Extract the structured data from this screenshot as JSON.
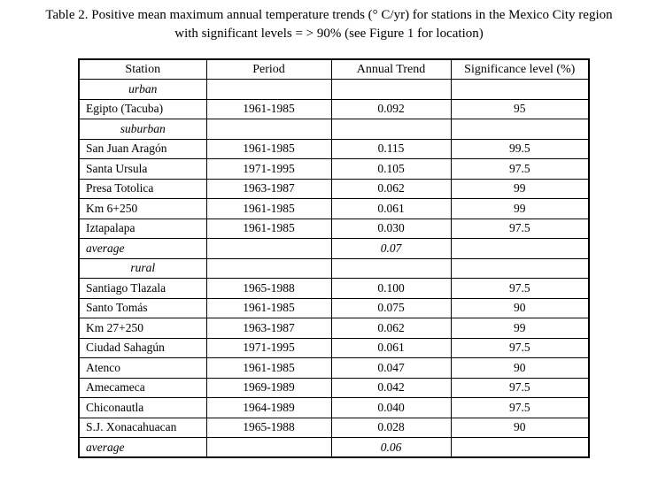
{
  "caption": {
    "line1": "Table 2. Positive mean maximum annual temperature trends (° C/yr) for stations in the Mexico City region",
    "line2": "with significant levels = > 90% (see Figure 1 for location)"
  },
  "table": {
    "columns": [
      "Station",
      "Period",
      "Annual Trend",
      "Significance level (%)"
    ],
    "rows": [
      {
        "type": "category",
        "station": "urban",
        "period": "",
        "trend": "",
        "significance": ""
      },
      {
        "type": "data",
        "station": "Egipto (Tacuba)",
        "period": "1961-1985",
        "trend": "0.092",
        "significance": "95"
      },
      {
        "type": "category",
        "station": "suburban",
        "period": "",
        "trend": "",
        "significance": ""
      },
      {
        "type": "data",
        "station": "San Juan Aragón",
        "period": "1961-1985",
        "trend": "0.115",
        "significance": "99.5"
      },
      {
        "type": "data",
        "station": "Santa Ursula",
        "period": "1971-1995",
        "trend": "0.105",
        "significance": "97.5"
      },
      {
        "type": "data",
        "station": "Presa Totolica",
        "period": "1963-1987",
        "trend": "0.062",
        "significance": "99"
      },
      {
        "type": "data",
        "station": "Km 6+250",
        "period": "1961-1985",
        "trend": "0.061",
        "significance": "99"
      },
      {
        "type": "data",
        "station": "Iztapalapa",
        "period": "1961-1985",
        "trend": "0.030",
        "significance": "97.5"
      },
      {
        "type": "average",
        "station": "average",
        "period": "",
        "trend": "0.07",
        "significance": ""
      },
      {
        "type": "category",
        "station": "rural",
        "period": "",
        "trend": "",
        "significance": ""
      },
      {
        "type": "data",
        "station": "Santiago Tlazala",
        "period": "1965-1988",
        "trend": "0.100",
        "significance": "97.5"
      },
      {
        "type": "data",
        "station": "Santo Tomás",
        "period": "1961-1985",
        "trend": "0.075",
        "significance": "90"
      },
      {
        "type": "data",
        "station": "Km 27+250",
        "period": "1963-1987",
        "trend": "0.062",
        "significance": "99"
      },
      {
        "type": "data",
        "station": "Ciudad Sahagún",
        "period": "1971-1995",
        "trend": "0.061",
        "significance": "97.5"
      },
      {
        "type": "data",
        "station": "Atenco",
        "period": "1961-1985",
        "trend": "0.047",
        "significance": "90"
      },
      {
        "type": "data",
        "station": "Amecameca",
        "period": "1969-1989",
        "trend": "0.042",
        "significance": "97.5"
      },
      {
        "type": "data",
        "station": "Chiconautla",
        "period": "1964-1989",
        "trend": "0.040",
        "significance": "97.5"
      },
      {
        "type": "data",
        "station": "S.J. Xonacahuacan",
        "period": "1965-1988",
        "trend": "0.028",
        "significance": "90"
      },
      {
        "type": "average",
        "station": "average",
        "period": "",
        "trend": "0.06",
        "significance": ""
      }
    ]
  },
  "colors": {
    "text": "#000000",
    "background": "#ffffff",
    "border": "#000000"
  }
}
